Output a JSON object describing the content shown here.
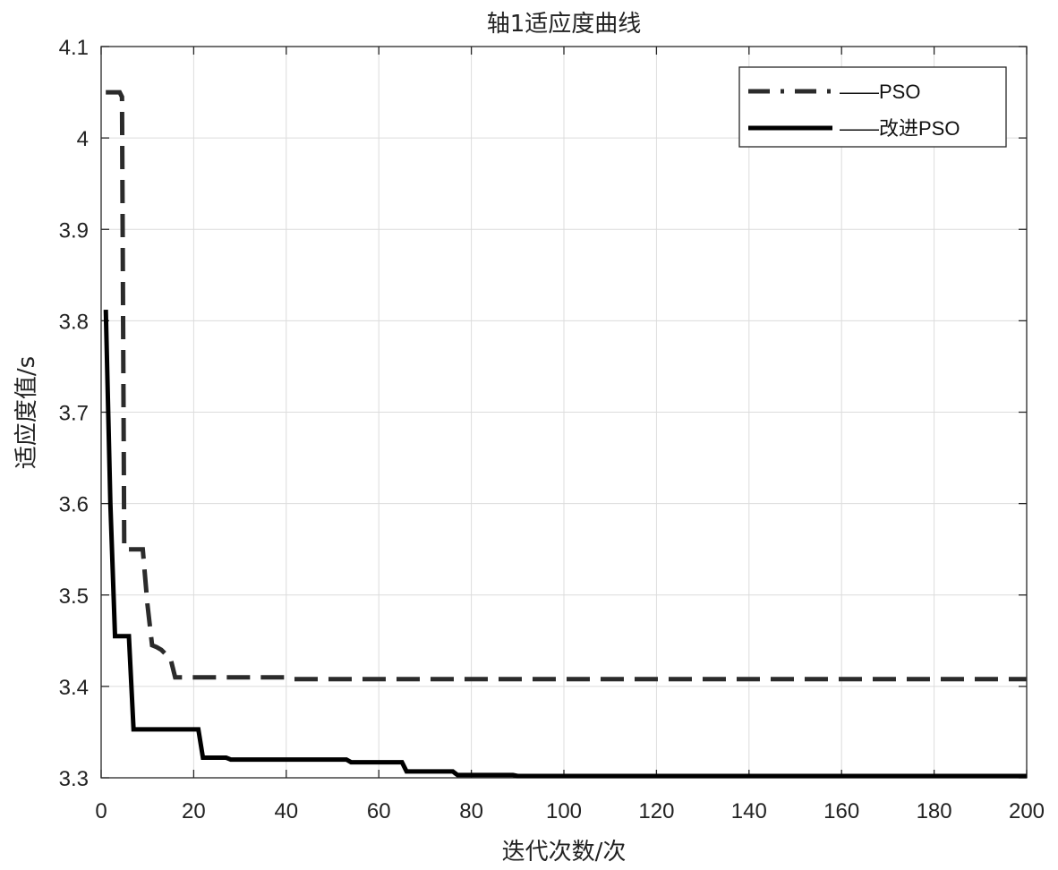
{
  "chart_data": {
    "type": "line",
    "title": "轴1适应度曲线",
    "xlabel": "迭代次数/次",
    "ylabel": "适应度值/s",
    "xlim": [
      0,
      200
    ],
    "ylim": [
      3.3,
      4.1
    ],
    "xticks": [
      0,
      20,
      40,
      60,
      80,
      100,
      120,
      140,
      160,
      180,
      200
    ],
    "yticks": [
      3.3,
      3.4,
      3.5,
      3.6,
      3.7,
      3.8,
      3.9,
      4.0,
      4.1
    ],
    "xtick_labels": [
      "0",
      "20",
      "40",
      "60",
      "80",
      "100",
      "120",
      "140",
      "160",
      "180",
      "200"
    ],
    "ytick_labels": [
      "3.3",
      "3.4",
      "3.5",
      "3.6",
      "3.7",
      "3.8",
      "3.9",
      "4",
      "4.1"
    ],
    "grid": true,
    "legend_position": "top-right",
    "series": [
      {
        "name": "——PSO",
        "style": "dashed",
        "color": "#2b2b2b",
        "points": [
          [
            1,
            4.05
          ],
          [
            4,
            4.05
          ],
          [
            4.5,
            4.045
          ],
          [
            5,
            3.55
          ],
          [
            9,
            3.55
          ],
          [
            10,
            3.49
          ],
          [
            11,
            3.445
          ],
          [
            12,
            3.443
          ],
          [
            13,
            3.44
          ],
          [
            15,
            3.43
          ],
          [
            16,
            3.41
          ],
          [
            40,
            3.41
          ],
          [
            41,
            3.408
          ],
          [
            200,
            3.408
          ]
        ]
      },
      {
        "name": "——改进PSO",
        "style": "solid",
        "color": "#000000",
        "points": [
          [
            1,
            3.812
          ],
          [
            2,
            3.6
          ],
          [
            3,
            3.455
          ],
          [
            6,
            3.455
          ],
          [
            7,
            3.353
          ],
          [
            21,
            3.353
          ],
          [
            22,
            3.322
          ],
          [
            27,
            3.322
          ],
          [
            28,
            3.32
          ],
          [
            53,
            3.32
          ],
          [
            54,
            3.317
          ],
          [
            65,
            3.317
          ],
          [
            66,
            3.307
          ],
          [
            76,
            3.307
          ],
          [
            77,
            3.303
          ],
          [
            89,
            3.303
          ],
          [
            90,
            3.302
          ],
          [
            200,
            3.302
          ]
        ]
      }
    ]
  }
}
